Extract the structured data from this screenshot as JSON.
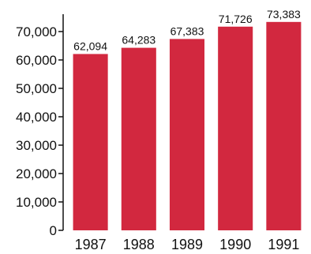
{
  "chart_data": {
    "type": "bar",
    "title": "",
    "xlabel": "",
    "ylabel": "",
    "categories": [
      "1987",
      "1988",
      "1989",
      "1990",
      "1991"
    ],
    "values": [
      62094,
      64283,
      67383,
      71726,
      73383
    ],
    "data_labels": [
      "62,094",
      "64,283",
      "67,383",
      "71,726",
      "73,383"
    ],
    "ylim": [
      0,
      75000
    ],
    "yticks": [
      0,
      10000,
      20000,
      30000,
      40000,
      50000,
      60000,
      70000
    ],
    "ytick_labels": [
      "0",
      "10,000",
      "20,000",
      "30,000",
      "40,000",
      "50,000",
      "60,000",
      "70,000"
    ],
    "grid": false,
    "legend": "none",
    "bar_color": "#d2283f",
    "axis_color": "#111111"
  }
}
